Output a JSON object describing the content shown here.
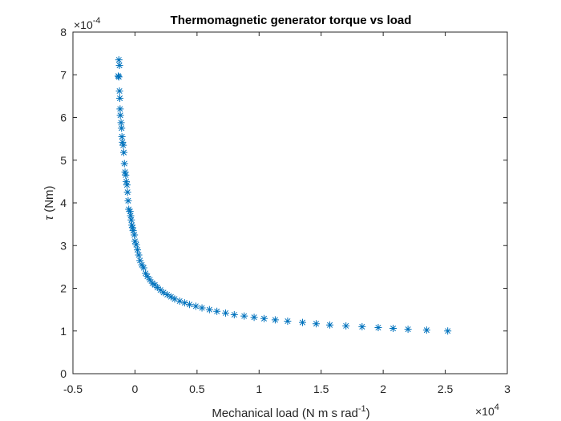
{
  "chart_data": {
    "type": "scatter",
    "title": "Thermomagnetic generator torque vs load",
    "xlabel": {
      "base": "Mechanical load (N m s rad",
      "sup": "-1",
      "close": ")"
    },
    "ylabel": {
      "sym": "τ",
      "rest": " (Nm)"
    },
    "x_multiplier": {
      "base": "×10",
      "exp": "4"
    },
    "y_multiplier": {
      "base": "×10",
      "exp": "-4"
    },
    "xlim": [
      -0.5,
      3
    ],
    "ylim": [
      0,
      8
    ],
    "xticks": [
      -0.5,
      0,
      0.5,
      1,
      1.5,
      2,
      2.5,
      3
    ],
    "xtick_labels": [
      "-0.5",
      "0",
      "0.5",
      "1",
      "1.5",
      "2",
      "2.5",
      "3"
    ],
    "yticks": [
      0,
      1,
      2,
      3,
      4,
      5,
      6,
      7,
      8
    ],
    "ytick_labels": [
      "0",
      "1",
      "2",
      "3",
      "4",
      "5",
      "6",
      "7",
      "8"
    ],
    "marker": "asterisk",
    "color": "#0072BD",
    "grid": false,
    "series": [
      {
        "points": [
          [
            -0.13,
            7.35
          ],
          [
            -0.125,
            7.22
          ],
          [
            -0.135,
            6.97
          ],
          [
            -0.13,
            6.95
          ],
          [
            -0.125,
            6.62
          ],
          [
            -0.122,
            6.45
          ],
          [
            -0.12,
            6.2
          ],
          [
            -0.118,
            6.05
          ],
          [
            -0.112,
            5.88
          ],
          [
            -0.108,
            5.75
          ],
          [
            -0.105,
            5.55
          ],
          [
            -0.1,
            5.42
          ],
          [
            -0.095,
            5.35
          ],
          [
            -0.09,
            5.18
          ],
          [
            -0.085,
            4.92
          ],
          [
            -0.08,
            4.72
          ],
          [
            -0.075,
            4.65
          ],
          [
            -0.07,
            4.5
          ],
          [
            -0.065,
            4.42
          ],
          [
            -0.06,
            4.25
          ],
          [
            -0.055,
            4.05
          ],
          [
            -0.05,
            3.85
          ],
          [
            -0.04,
            3.8
          ],
          [
            -0.035,
            3.7
          ],
          [
            -0.03,
            3.6
          ],
          [
            -0.025,
            3.48
          ],
          [
            -0.02,
            3.42
          ],
          [
            -0.015,
            3.35
          ],
          [
            -0.005,
            3.25
          ],
          [
            0.0,
            3.1
          ],
          [
            0.01,
            3.02
          ],
          [
            0.02,
            2.9
          ],
          [
            0.03,
            2.78
          ],
          [
            0.04,
            2.65
          ],
          [
            0.055,
            2.55
          ],
          [
            0.07,
            2.48
          ],
          [
            0.085,
            2.35
          ],
          [
            0.1,
            2.28
          ],
          [
            0.12,
            2.2
          ],
          [
            0.14,
            2.12
          ],
          [
            0.16,
            2.08
          ],
          [
            0.18,
            2.02
          ],
          [
            0.205,
            1.96
          ],
          [
            0.23,
            1.9
          ],
          [
            0.26,
            1.85
          ],
          [
            0.29,
            1.8
          ],
          [
            0.32,
            1.75
          ],
          [
            0.36,
            1.7
          ],
          [
            0.4,
            1.66
          ],
          [
            0.44,
            1.62
          ],
          [
            0.49,
            1.58
          ],
          [
            0.54,
            1.54
          ],
          [
            0.6,
            1.5
          ],
          [
            0.66,
            1.46
          ],
          [
            0.73,
            1.42
          ],
          [
            0.8,
            1.38
          ],
          [
            0.88,
            1.35
          ],
          [
            0.96,
            1.32
          ],
          [
            1.04,
            1.29
          ],
          [
            1.13,
            1.26
          ],
          [
            1.23,
            1.23
          ],
          [
            1.35,
            1.2
          ],
          [
            1.46,
            1.17
          ],
          [
            1.57,
            1.14
          ],
          [
            1.7,
            1.12
          ],
          [
            1.83,
            1.1
          ],
          [
            1.96,
            1.08
          ],
          [
            2.08,
            1.06
          ],
          [
            2.2,
            1.04
          ],
          [
            2.35,
            1.02
          ],
          [
            2.52,
            1.0
          ]
        ]
      }
    ]
  }
}
